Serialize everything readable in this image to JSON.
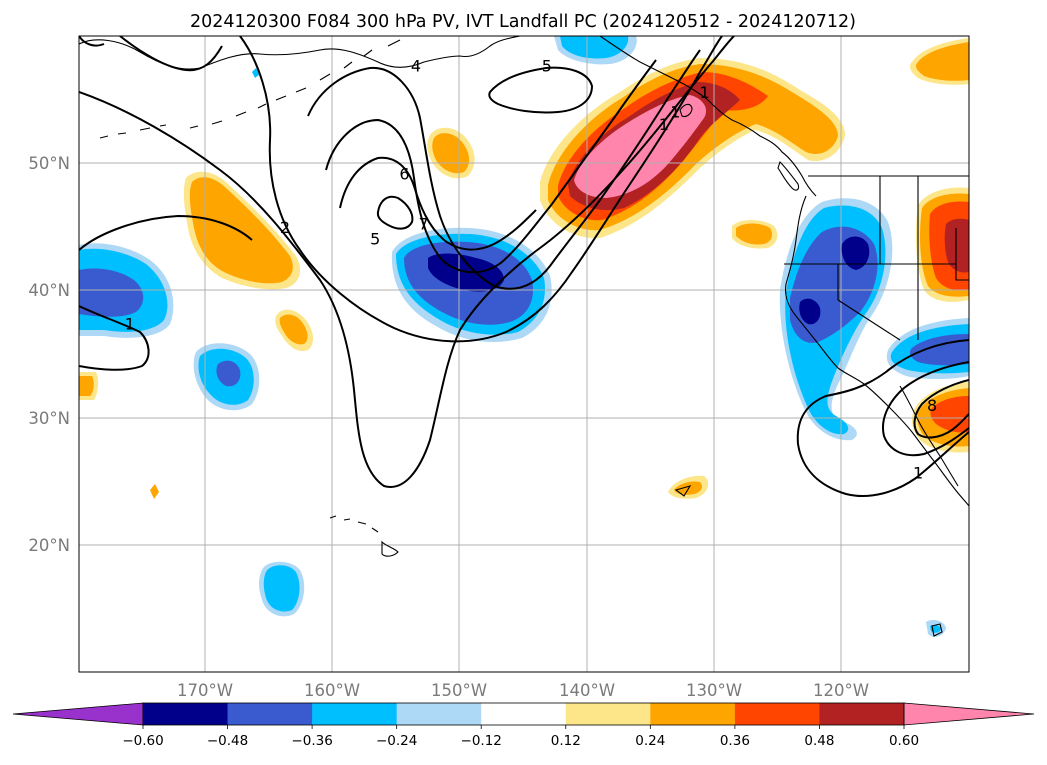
{
  "title": "2024120300 F084 300 hPa PV, IVT Landfall PC (2024120512 - 2024120712)",
  "map": {
    "extent": {
      "lon_min": -180,
      "lon_max": -110,
      "lat_min": 10,
      "lat_max": 60
    },
    "latitude_labels": [
      {
        "lat": 50,
        "text": "50°N"
      },
      {
        "lat": 40,
        "text": "40°N"
      },
      {
        "lat": 30,
        "text": "30°N"
      },
      {
        "lat": 20,
        "text": "20°N"
      }
    ],
    "longitude_labels": [
      {
        "lon": -170,
        "text": "170°W"
      },
      {
        "lon": -160,
        "text": "160°W"
      },
      {
        "lon": -150,
        "text": "150°W"
      },
      {
        "lon": -140,
        "text": "140°W"
      },
      {
        "lon": -130,
        "text": "130°W"
      },
      {
        "lon": -120,
        "text": "120°W"
      }
    ],
    "gridlines": true,
    "contour_labels": [
      {
        "text": "4",
        "lon": -153.5,
        "lat": 57.6
      },
      {
        "text": "5",
        "lon": -143.2,
        "lat": 57.6
      },
      {
        "text": "6",
        "lon": -154.4,
        "lat": 49.1
      },
      {
        "text": "7",
        "lon": -152.9,
        "lat": 45.2
      },
      {
        "text": "5",
        "lon": -156.7,
        "lat": 44.0
      },
      {
        "text": "2",
        "lon": -163.8,
        "lat": 44.9
      },
      {
        "text": "1",
        "lon": -134.0,
        "lat": 53.0
      },
      {
        "text": "1",
        "lon": -133.1,
        "lat": 54.0
      },
      {
        "text": "1",
        "lon": -130.8,
        "lat": 55.5
      },
      {
        "text": "1",
        "lon": -176.0,
        "lat": 37.3
      },
      {
        "text": "1",
        "lon": -114.0,
        "lat": 25.6
      },
      {
        "text": "8",
        "lon": -112.9,
        "lat": 30.9
      }
    ]
  },
  "colors": {
    "-0.72": "#9932cc",
    "-0.60": "#00008b",
    "-0.48": "#3a5bcf",
    "-0.36": "#00bfff",
    "-0.24": "#add8f6",
    "0.12": "#fde68a",
    "0.24": "#ffa500",
    "0.36": "#ff4500",
    "0.48": "#b22222",
    "0.60": "#ff85ad"
  },
  "colorbar": {
    "ticks": [
      "−0.60",
      "−0.48",
      "−0.36",
      "−0.24",
      "−0.12",
      "0.12",
      "0.24",
      "0.36",
      "0.48",
      "0.60"
    ],
    "segments": [
      {
        "color": "#00008b"
      },
      {
        "color": "#3a5bcf"
      },
      {
        "color": "#00bfff"
      },
      {
        "color": "#add8f6"
      },
      {
        "color": "#ffffff"
      },
      {
        "color": "#fde68a"
      },
      {
        "color": "#ffa500"
      },
      {
        "color": "#ff4500"
      },
      {
        "color": "#b22222"
      }
    ],
    "extend_low_color": "#9932cc",
    "extend_high_color": "#ff85ad"
  }
}
